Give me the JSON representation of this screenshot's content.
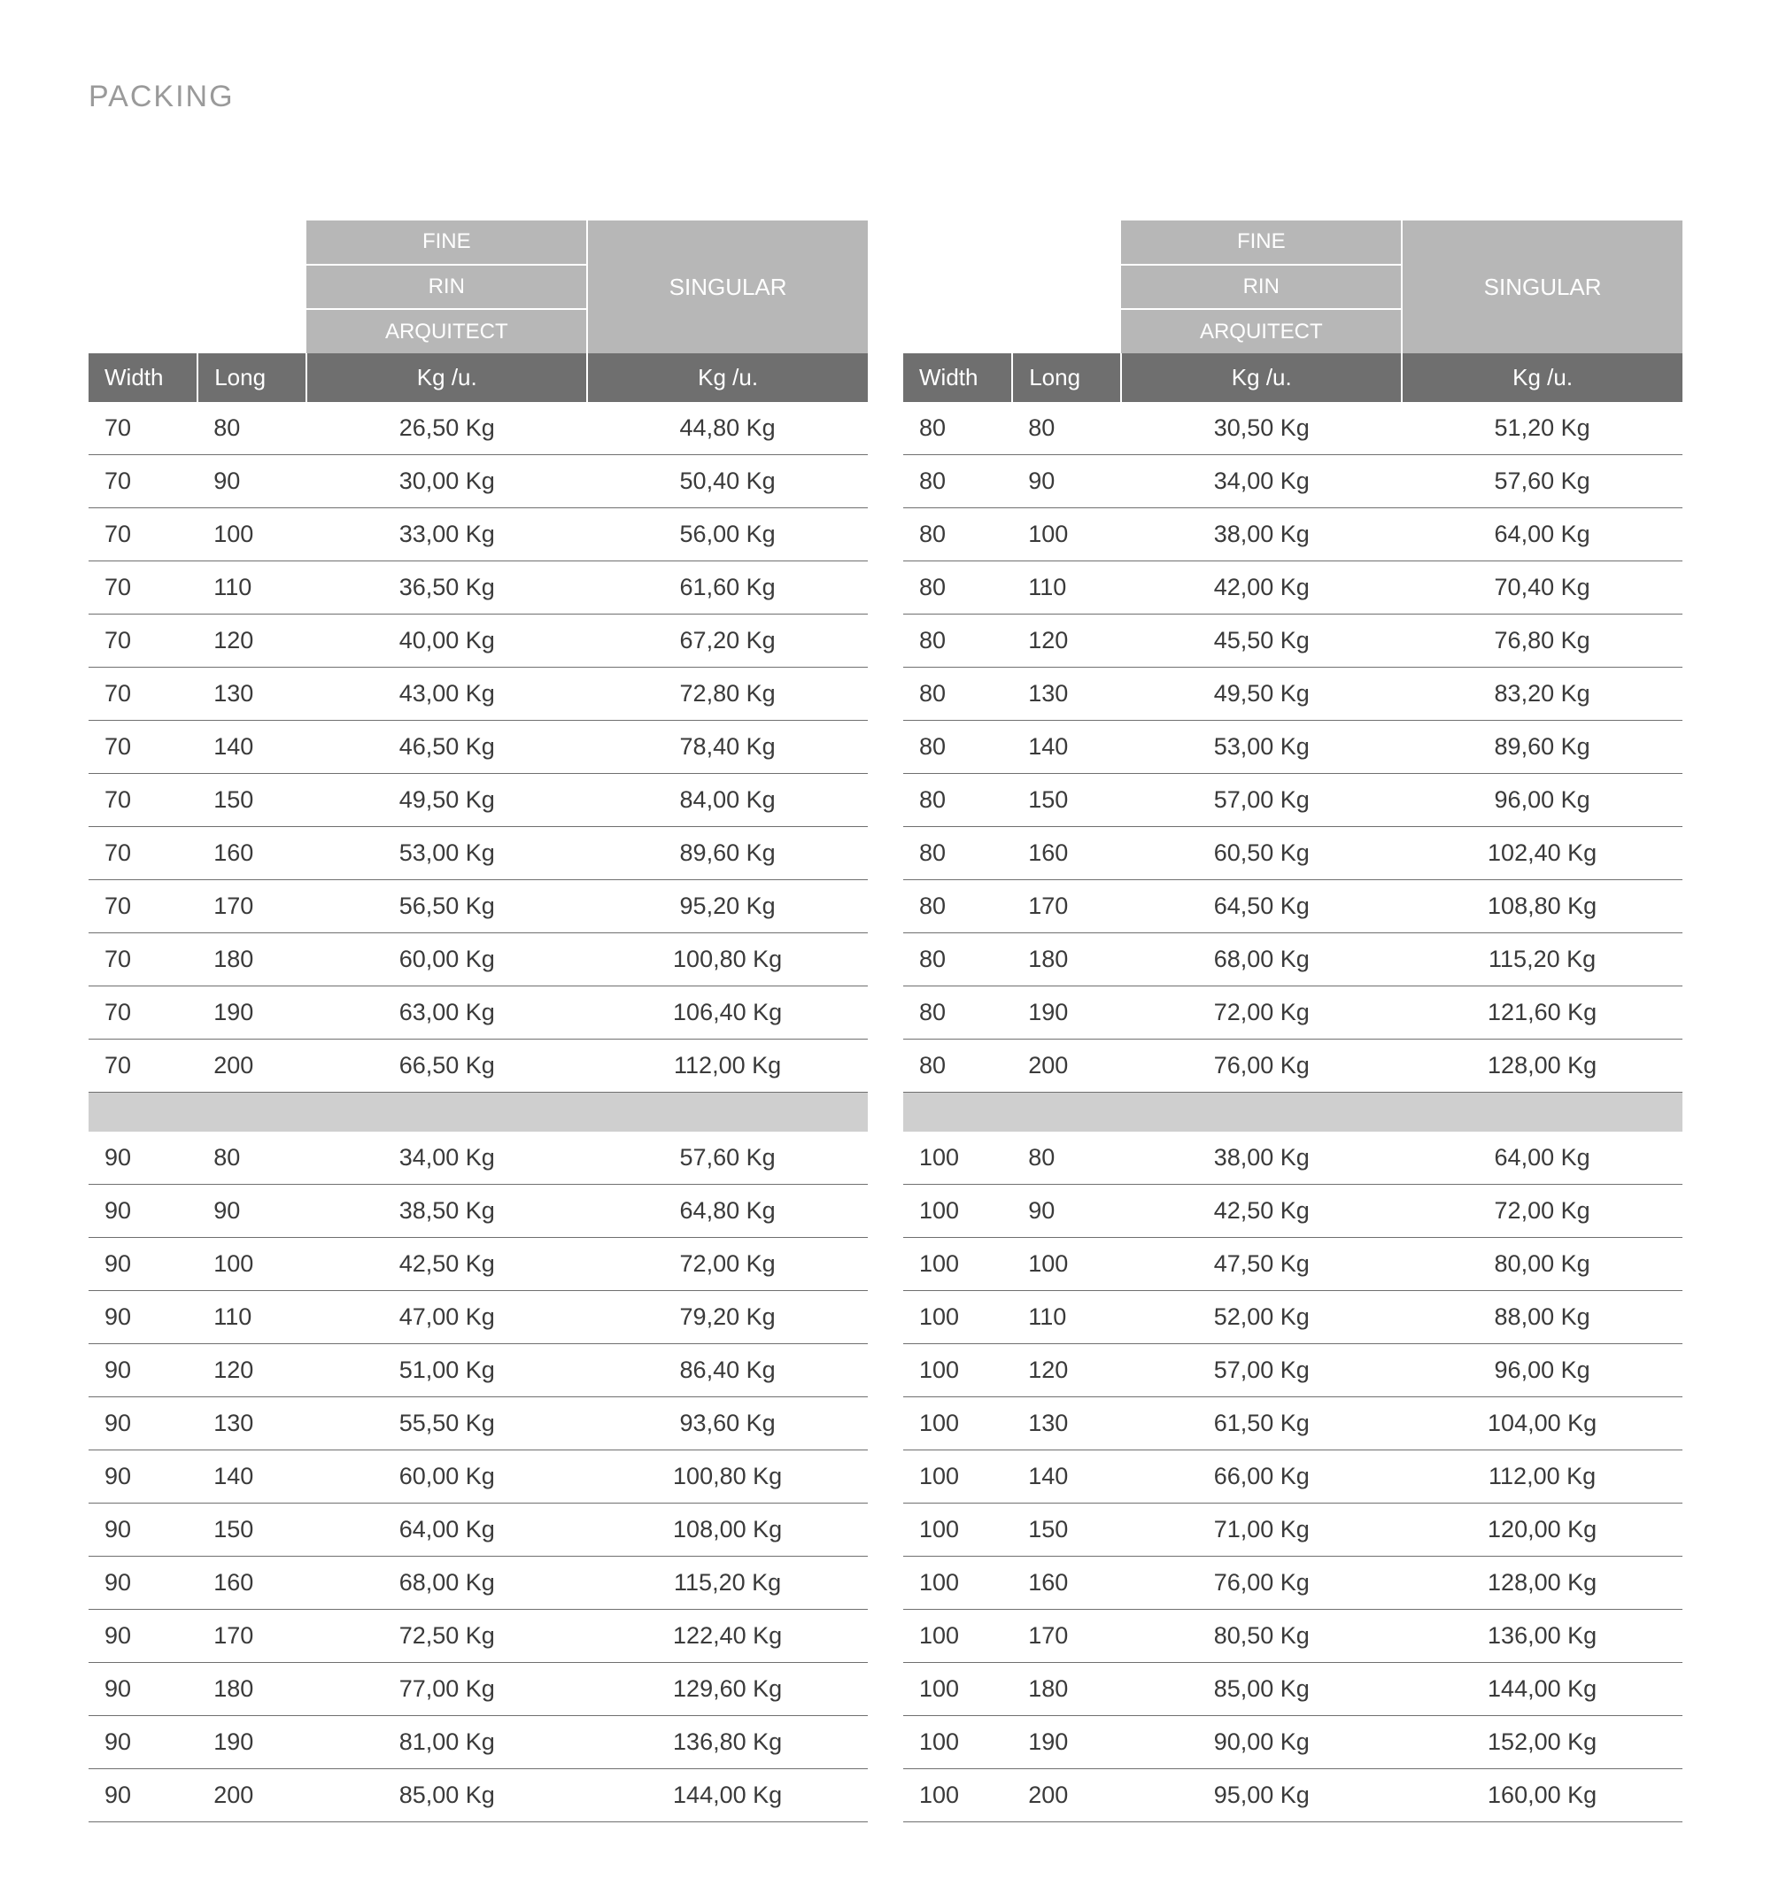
{
  "title": "PACKING",
  "colors": {
    "header_light": "#b7b7b7",
    "header_dark": "#6f6f6f",
    "spacer": "#cfcfcf",
    "text": "#3a3a3a",
    "title": "#9a9a9a",
    "border": "#6f6f6f",
    "bg": "#ffffff"
  },
  "fonts": {
    "title_size": 34,
    "header_size": 26,
    "cell_size": 27
  },
  "headers": {
    "stack": [
      "FINE",
      "RIN",
      "ARQUITECT"
    ],
    "singular": "SINGULAR",
    "width": "Width",
    "long": "Long",
    "kgu": "Kg /u."
  },
  "left": {
    "block1": [
      [
        "70",
        "80",
        "26,50 Kg",
        "44,80 Kg"
      ],
      [
        "70",
        "90",
        "30,00 Kg",
        "50,40 Kg"
      ],
      [
        "70",
        "100",
        "33,00 Kg",
        "56,00 Kg"
      ],
      [
        "70",
        "110",
        "36,50 Kg",
        "61,60 Kg"
      ],
      [
        "70",
        "120",
        "40,00 Kg",
        "67,20 Kg"
      ],
      [
        "70",
        "130",
        "43,00 Kg",
        "72,80 Kg"
      ],
      [
        "70",
        "140",
        "46,50 Kg",
        "78,40 Kg"
      ],
      [
        "70",
        "150",
        "49,50 Kg",
        "84,00 Kg"
      ],
      [
        "70",
        "160",
        "53,00 Kg",
        "89,60 Kg"
      ],
      [
        "70",
        "170",
        "56,50 Kg",
        "95,20 Kg"
      ],
      [
        "70",
        "180",
        "60,00 Kg",
        "100,80 Kg"
      ],
      [
        "70",
        "190",
        "63,00 Kg",
        "106,40 Kg"
      ],
      [
        "70",
        "200",
        "66,50 Kg",
        "112,00 Kg"
      ]
    ],
    "block2": [
      [
        "90",
        "80",
        "34,00 Kg",
        "57,60 Kg"
      ],
      [
        "90",
        "90",
        "38,50 Kg",
        "64,80 Kg"
      ],
      [
        "90",
        "100",
        "42,50 Kg",
        "72,00 Kg"
      ],
      [
        "90",
        "110",
        "47,00 Kg",
        "79,20 Kg"
      ],
      [
        "90",
        "120",
        "51,00 Kg",
        "86,40 Kg"
      ],
      [
        "90",
        "130",
        "55,50 Kg",
        "93,60 Kg"
      ],
      [
        "90",
        "140",
        "60,00 Kg",
        "100,80 Kg"
      ],
      [
        "90",
        "150",
        "64,00 Kg",
        "108,00 Kg"
      ],
      [
        "90",
        "160",
        "68,00 Kg",
        "115,20 Kg"
      ],
      [
        "90",
        "170",
        "72,50 Kg",
        "122,40 Kg"
      ],
      [
        "90",
        "180",
        "77,00 Kg",
        "129,60 Kg"
      ],
      [
        "90",
        "190",
        "81,00 Kg",
        "136,80 Kg"
      ],
      [
        "90",
        "200",
        "85,00 Kg",
        "144,00 Kg"
      ]
    ]
  },
  "right": {
    "block1": [
      [
        "80",
        "80",
        "30,50 Kg",
        "51,20 Kg"
      ],
      [
        "80",
        "90",
        "34,00 Kg",
        "57,60 Kg"
      ],
      [
        "80",
        "100",
        "38,00 Kg",
        "64,00 Kg"
      ],
      [
        "80",
        "110",
        "42,00 Kg",
        "70,40 Kg"
      ],
      [
        "80",
        "120",
        "45,50 Kg",
        "76,80 Kg"
      ],
      [
        "80",
        "130",
        "49,50 Kg",
        "83,20 Kg"
      ],
      [
        "80",
        "140",
        "53,00 Kg",
        "89,60 Kg"
      ],
      [
        "80",
        "150",
        "57,00 Kg",
        "96,00 Kg"
      ],
      [
        "80",
        "160",
        "60,50 Kg",
        "102,40 Kg"
      ],
      [
        "80",
        "170",
        "64,50 Kg",
        "108,80 Kg"
      ],
      [
        "80",
        "180",
        "68,00 Kg",
        "115,20 Kg"
      ],
      [
        "80",
        "190",
        "72,00 Kg",
        "121,60 Kg"
      ],
      [
        "80",
        "200",
        "76,00 Kg",
        "128,00 Kg"
      ]
    ],
    "block2": [
      [
        "100",
        "80",
        "38,00 Kg",
        "64,00 Kg"
      ],
      [
        "100",
        "90",
        "42,50 Kg",
        "72,00 Kg"
      ],
      [
        "100",
        "100",
        "47,50 Kg",
        "80,00 Kg"
      ],
      [
        "100",
        "110",
        "52,00 Kg",
        "88,00 Kg"
      ],
      [
        "100",
        "120",
        "57,00 Kg",
        "96,00 Kg"
      ],
      [
        "100",
        "130",
        "61,50 Kg",
        "104,00 Kg"
      ],
      [
        "100",
        "140",
        "66,00 Kg",
        "112,00 Kg"
      ],
      [
        "100",
        "150",
        "71,00 Kg",
        "120,00 Kg"
      ],
      [
        "100",
        "160",
        "76,00 Kg",
        "128,00 Kg"
      ],
      [
        "100",
        "170",
        "80,50 Kg",
        "136,00 Kg"
      ],
      [
        "100",
        "180",
        "85,00 Kg",
        "144,00 Kg"
      ],
      [
        "100",
        "190",
        "90,00 Kg",
        "152,00 Kg"
      ],
      [
        "100",
        "200",
        "95,00 Kg",
        "160,00 Kg"
      ]
    ]
  }
}
